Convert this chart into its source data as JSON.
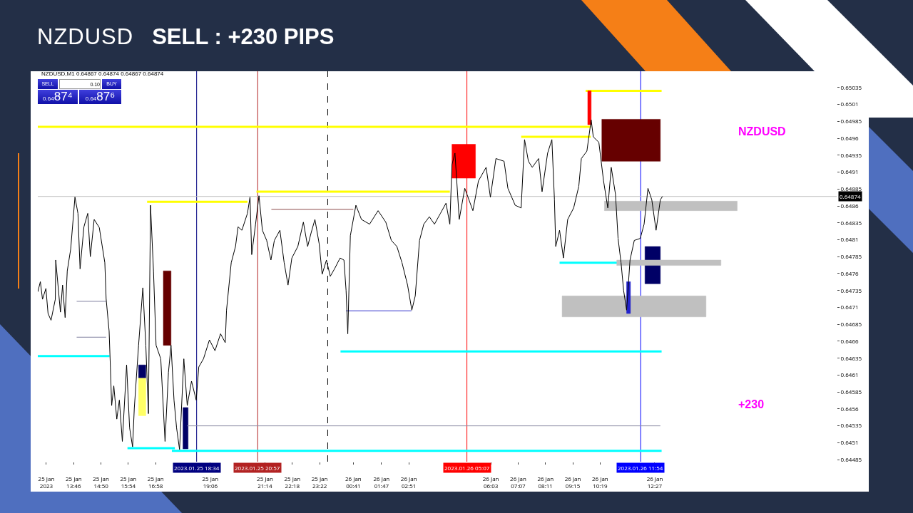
{
  "chart_data": {
    "type": "line",
    "title": "NZDUSD",
    "subtitle": "SELL : +230 PIPS",
    "annotations": [
      "NZDUSD,M1  0.64867 0.64874 0.64867 0.64874",
      "NZDUSD",
      "+230",
      "SELL",
      "0.10",
      "BUY",
      "0.6487⁴",
      "0.6487⁶"
    ],
    "xlim": [
      "2023-01-25T12:22",
      "2023-01-26T19:33"
    ],
    "ylim": [
      0.64482,
      0.65059
    ],
    "xticks": [
      {
        "value": "2023-01-25T12:42",
        "label": "25 Jan 2023"
      },
      {
        "value": "2023-01-25T13:46",
        "label": "25 Jan 13:46"
      },
      {
        "value": "2023-01-25T14:50",
        "label": "25 Jan 14:50"
      },
      {
        "value": "2023-01-25T15:54",
        "label": "25 Jan 15:54"
      },
      {
        "value": "2023-01-25T16:58",
        "label": "25 Jan 16:58"
      },
      {
        "value": "2023-01-25T19:06",
        "label": "25 Jan 19:06"
      },
      {
        "value": "2023-01-25T21:14",
        "label": "25 Jan 21:14"
      },
      {
        "value": "2023-01-25T22:18",
        "label": "25 Jan 22:18"
      },
      {
        "value": "2023-01-25T23:22",
        "label": "25 Jan 23:22"
      },
      {
        "value": "2023-01-26T00:41",
        "label": "26 Jan 00:41"
      },
      {
        "value": "2023-01-26T01:47",
        "label": "26 Jan 01:47"
      },
      {
        "value": "2023-01-26T02:51",
        "label": "26 Jan 02:51"
      },
      {
        "value": "2023-01-26T06:03",
        "label": "26 Jan 06:03"
      },
      {
        "value": "2023-01-26T07:07",
        "label": "26 Jan 07:07"
      },
      {
        "value": "2023-01-26T08:11",
        "label": "26 Jan 08:11"
      },
      {
        "value": "2023-01-26T09:15",
        "label": "26 Jan 09:15"
      },
      {
        "value": "2023-01-26T10:19",
        "label": "26 Jan 10:19"
      },
      {
        "value": "2023-01-26T12:27",
        "label": "26 Jan 12:27"
      }
    ],
    "yticks": [
      0.64485,
      0.6451,
      0.64535,
      0.6456,
      0.64585,
      0.6461,
      0.64635,
      0.6466,
      0.64685,
      0.6471,
      0.64735,
      0.6476,
      0.64785,
      0.6481,
      0.64835,
      0.6486,
      0.64885,
      0.6491,
      0.64935,
      0.6496,
      0.64985,
      0.6501,
      0.65035
    ],
    "series": [
      {
        "color": "#000000",
        "x": [
          "2023-01-25T12:22",
          "2023-01-25T12:28",
          "2023-01-25T12:33",
          "2023-01-25T12:41",
          "2023-01-25T12:46",
          "2023-01-25T12:53",
          "2023-01-25T13:03",
          "2023-01-25T13:04",
          "2023-01-25T13:15",
          "2023-01-25T13:20",
          "2023-01-25T13:26",
          "2023-01-25T13:31",
          "2023-01-25T13:39",
          "2023-01-25T13:49",
          "2023-01-25T13:56",
          "2023-01-25T14:01",
          "2023-01-25T14:10",
          "2023-01-25T14:19",
          "2023-01-25T14:25",
          "2023-01-25T14:34",
          "2023-01-25T14:46",
          "2023-01-25T14:59",
          "2023-01-25T15:02",
          "2023-01-25T15:09",
          "2023-01-25T15:12",
          "2023-01-25T15:15",
          "2023-01-25T15:20",
          "2023-01-25T15:27",
          "2023-01-25T15:33",
          "2023-01-25T15:40",
          "2023-01-25T15:50",
          "2023-01-25T15:57",
          "2023-01-25T16:04",
          "2023-01-25T16:08",
          "2023-01-25T16:18",
          "2023-01-25T16:28",
          "2023-01-25T16:35",
          "2023-01-25T16:41",
          "2023-01-25T16:46",
          "2023-01-25T16:53",
          "2023-01-25T16:59",
          "2023-01-25T17:10",
          "2023-01-25T17:20",
          "2023-01-25T17:28",
          "2023-01-25T17:34",
          "2023-01-25T17:41",
          "2023-01-25T17:47",
          "2023-01-25T17:54",
          "2023-01-25T18:04",
          "2023-01-25T18:12",
          "2023-01-25T18:22",
          "2023-01-25T18:33",
          "2023-01-25T18:39",
          "2023-01-25T18:50",
          "2023-01-25T19:04",
          "2023-01-25T19:17",
          "2023-01-25T19:30",
          "2023-01-25T19:41",
          "2023-01-25T19:44",
          "2023-01-25T19:55",
          "2023-01-25T20:05",
          "2023-01-25T20:11",
          "2023-01-25T20:20",
          "2023-01-25T20:33",
          "2023-01-25T20:39",
          "2023-01-25T20:43",
          "2023-01-25T20:52",
          "2023-01-25T21:00",
          "2023-01-25T21:08",
          "2023-01-25T21:18",
          "2023-01-25T21:28",
          "2023-01-25T21:36",
          "2023-01-25T21:49",
          "2023-01-25T21:59",
          "2023-01-25T22:08",
          "2023-01-25T22:17",
          "2023-01-25T22:31",
          "2023-01-25T22:44",
          "2023-01-25T22:54",
          "2023-01-25T23:02",
          "2023-01-25T23:11",
          "2023-01-25T23:21",
          "2023-01-25T23:28",
          "2023-01-25T23:38",
          "2023-01-25T23:47",
          "2023-01-25T23:57",
          "2023-01-26T00:10",
          "2023-01-26T00:19",
          "2023-01-26T00:24",
          "2023-01-26T00:28",
          "2023-01-26T00:34",
          "2023-01-26T00:47",
          "2023-01-26T01:00",
          "2023-01-26T01:19",
          "2023-01-26T01:39",
          "2023-01-26T01:57",
          "2023-01-26T02:10",
          "2023-01-26T02:23",
          "2023-01-26T02:35",
          "2023-01-26T02:48",
          "2023-01-26T02:58",
          "2023-01-26T03:06",
          "2023-01-26T03:16",
          "2023-01-26T03:26",
          "2023-01-26T03:39",
          "2023-01-26T03:51",
          "2023-01-26T04:05",
          "2023-01-26T04:18",
          "2023-01-26T04:27",
          "2023-01-26T04:32",
          "2023-01-26T04:39",
          "2023-01-26T04:49",
          "2023-01-26T05:02",
          "2023-01-26T05:21",
          "2023-01-26T05:34",
          "2023-01-26T05:52",
          "2023-01-26T06:02",
          "2023-01-26T06:15",
          "2023-01-26T06:34",
          "2023-01-26T06:43",
          "2023-01-26T07:00",
          "2023-01-26T07:14",
          "2023-01-26T07:22",
          "2023-01-26T07:31",
          "2023-01-26T07:40",
          "2023-01-26T07:55",
          "2023-01-26T08:03",
          "2023-01-26T08:16",
          "2023-01-26T08:26",
          "2023-01-26T08:32",
          "2023-01-26T08:35",
          "2023-01-26T08:44",
          "2023-01-26T08:53",
          "2023-01-26T09:03",
          "2023-01-26T09:17",
          "2023-01-26T09:29",
          "2023-01-26T09:35",
          "2023-01-26T09:48",
          "2023-01-26T09:58",
          "2023-01-26T10:03",
          "2023-01-26T10:16",
          "2023-01-26T10:27",
          "2023-01-26T10:37",
          "2023-01-26T10:45",
          "2023-01-26T10:55",
          "2023-01-26T11:01",
          "2023-01-26T11:08",
          "2023-01-26T11:14",
          "2023-01-26T11:21",
          "2023-01-26T11:29",
          "2023-01-26T11:39",
          "2023-01-26T11:53",
          "2023-01-26T12:02",
          "2023-01-26T12:11",
          "2023-01-26T12:20",
          "2023-01-26T12:30",
          "2023-01-26T12:40",
          "2023-01-26T12:45"
        ],
        "values": [
          0.64733,
          0.64748,
          0.64722,
          0.64738,
          0.64701,
          0.64691,
          0.64722,
          0.6478,
          0.64703,
          0.64743,
          0.64695,
          0.64764,
          0.64796,
          0.64873,
          0.64849,
          0.64767,
          0.64829,
          0.64849,
          0.64785,
          0.6484,
          0.64828,
          0.64776,
          0.64723,
          0.64675,
          0.64622,
          0.64565,
          0.64594,
          0.64545,
          0.64573,
          0.64512,
          0.64625,
          0.64532,
          0.64504,
          0.64561,
          0.64654,
          0.64739,
          0.64654,
          0.64553,
          0.64861,
          0.64763,
          0.64654,
          0.64634,
          0.64512,
          0.64614,
          0.64654,
          0.64573,
          0.64532,
          0.645,
          0.64634,
          0.64565,
          0.64601,
          0.64573,
          0.64622,
          0.64634,
          0.64662,
          0.64646,
          0.64671,
          0.64658,
          0.64706,
          0.64776,
          0.648,
          0.64829,
          0.64824,
          0.64849,
          0.64873,
          0.64788,
          0.64833,
          0.64875,
          0.64824,
          0.64809,
          0.6478,
          0.64809,
          0.64824,
          0.64776,
          0.64743,
          0.64783,
          0.648,
          0.64836,
          0.648,
          0.6482,
          0.6484,
          0.64804,
          0.64759,
          0.6478,
          0.64756,
          0.64767,
          0.64783,
          0.6478,
          0.64735,
          0.64671,
          0.64816,
          0.64861,
          0.6484,
          0.64833,
          0.64853,
          0.64836,
          0.64809,
          0.648,
          0.64776,
          0.64743,
          0.64706,
          0.64727,
          0.64809,
          0.64833,
          0.64844,
          0.64833,
          0.64849,
          0.64864,
          0.64833,
          0.64921,
          0.64938,
          0.6484,
          0.64886,
          0.64853,
          0.64897,
          0.64917,
          0.64873,
          0.6493,
          0.64926,
          0.64886,
          0.64861,
          0.64857,
          0.64958,
          0.64926,
          0.64917,
          0.6493,
          0.64881,
          0.64938,
          0.64958,
          0.64869,
          0.648,
          0.64824,
          0.64783,
          0.6484,
          0.64857,
          0.64889,
          0.6493,
          0.64941,
          0.64987,
          0.64962,
          0.64954,
          0.64897,
          0.64857,
          0.64917,
          0.64877,
          0.64812,
          0.64776,
          0.64735,
          0.64706,
          0.6478,
          0.64809,
          0.64812,
          0.64833,
          0.64886,
          0.64869,
          0.64824,
          0.64869,
          0.64874
        ]
      },
      {
        "color": "#ffff00",
        "x": [
          "2023-01-25T12:22",
          "2023-01-26T09:57"
        ],
        "values": [
          0.64977,
          0.64977
        ]
      },
      {
        "color": "#ffff00",
        "x": [
          "2023-01-26T07:14",
          "2023-01-26T09:57"
        ],
        "values": [
          0.64962,
          0.64962
        ]
      },
      {
        "color": "#ffff00",
        "x": [
          "2023-01-26T09:45",
          "2023-01-26T12:43"
        ],
        "values": [
          0.6503,
          0.6503
        ]
      },
      {
        "color": "#ffff00",
        "x": [
          "2023-01-25T16:38",
          "2023-01-25T20:33"
        ],
        "values": [
          0.64866,
          0.64866
        ]
      },
      {
        "color": "#ffff00",
        "x": [
          "2023-01-25T20:54",
          "2023-01-26T04:27"
        ],
        "values": [
          0.64881,
          0.64881
        ]
      },
      {
        "color": "#00ffff",
        "x": [
          "2023-01-25T12:22",
          "2023-01-25T15:10"
        ],
        "values": [
          0.64638,
          0.64638
        ]
      },
      {
        "color": "#00ffff",
        "x": [
          "2023-01-25T15:52",
          "2023-01-25T17:43"
        ],
        "values": [
          0.64502,
          0.64502
        ]
      },
      {
        "color": "#00ffff",
        "x": [
          "2023-01-25T17:36",
          "2023-01-26T12:43"
        ],
        "values": [
          0.64498,
          0.64498
        ]
      },
      {
        "color": "#00ffff",
        "x": [
          "2023-01-26T00:11",
          "2023-01-26T12:43"
        ],
        "values": [
          0.64645,
          0.64645
        ]
      },
      {
        "color": "#00ffff",
        "x": [
          "2023-01-26T08:44",
          "2023-01-26T10:59"
        ],
        "values": [
          0.64776,
          0.64776
        ]
      },
      {
        "type": "area",
        "color": "#ff0000",
        "x": [
          "2023-01-26T04:32",
          "2023-01-26T05:27",
          "2023-01-26T05:27",
          "2023-01-26T04:32",
          "2023-01-26T04:32"
        ],
        "values": [
          0.64951,
          0.64951,
          0.64901,
          0.64901,
          0.64951
        ]
      },
      {
        "type": "area",
        "color": "#660000",
        "x": [
          "2023-01-26T10:23",
          "2023-01-26T12:40",
          "2023-01-26T12:40",
          "2023-01-26T10:23",
          "2023-01-26T10:23"
        ],
        "values": [
          0.64988,
          0.64988,
          0.64926,
          0.64926,
          0.64988
        ]
      },
      {
        "type": "area",
        "color": "#660000",
        "x": [
          "2023-01-25T17:16",
          "2023-01-25T17:34",
          "2023-01-25T17:34",
          "2023-01-25T17:16",
          "2023-01-25T17:16"
        ],
        "values": [
          0.64764,
          0.64764,
          0.64654,
          0.64654,
          0.64764
        ]
      },
      {
        "type": "area",
        "color": "#000066",
        "x": [
          "2023-01-26T12:04",
          "2023-01-26T12:40",
          "2023-01-26T12:40",
          "2023-01-26T12:04",
          "2023-01-26T12:04"
        ],
        "values": [
          0.648,
          0.648,
          0.64745,
          0.64745,
          0.648
        ]
      },
      {
        "type": "area",
        "color": "#c0c0c0",
        "x": [
          "2023-01-26T10:29",
          "2023-01-26T15:40",
          "2023-01-26T15:40",
          "2023-01-26T10:29",
          "2023-01-26T10:29"
        ],
        "values": [
          0.64867,
          0.64867,
          0.64853,
          0.64853,
          0.64867
        ]
      },
      {
        "type": "area",
        "color": "#c0c0c0",
        "x": [
          "2023-01-26T10:58",
          "2023-01-26T15:02",
          "2023-01-26T15:02",
          "2023-01-26T10:58",
          "2023-01-26T10:58"
        ],
        "values": [
          0.6478,
          0.6478,
          0.64772,
          0.64772,
          0.6478
        ]
      },
      {
        "type": "area",
        "color": "#c0c0c0",
        "x": [
          "2023-01-26T08:50",
          "2023-01-26T14:27",
          "2023-01-26T14:27",
          "2023-01-26T08:50",
          "2023-01-26T08:50"
        ],
        "values": [
          0.64727,
          0.64727,
          0.64696,
          0.64696,
          0.64727
        ]
      },
      {
        "type": "area",
        "color": "#ffff66",
        "x": [
          "2023-01-25T16:18",
          "2023-01-25T16:35",
          "2023-01-25T16:35",
          "2023-01-25T16:18",
          "2023-01-25T16:18"
        ],
        "values": [
          0.64606,
          0.64606,
          0.6455,
          0.6455,
          0.64606
        ]
      },
      {
        "type": "area",
        "color": "#000066",
        "x": [
          "2023-01-25T16:18",
          "2023-01-25T16:35",
          "2023-01-25T16:35",
          "2023-01-25T16:18",
          "2023-01-25T16:18"
        ],
        "values": [
          0.64625,
          0.64625,
          0.64606,
          0.64606,
          0.64625
        ]
      },
      {
        "type": "area",
        "color": "#000066",
        "x": [
          "2023-01-25T18:02",
          "2023-01-25T18:14",
          "2023-01-25T18:14",
          "2023-01-25T18:02",
          "2023-01-25T18:02"
        ],
        "values": [
          0.64562,
          0.64562,
          0.64501,
          0.64501,
          0.64562
        ]
      },
      {
        "type": "area",
        "color": "#2222cc",
        "x": [
          "2023-01-26T11:21",
          "2023-01-26T11:30",
          "2023-01-26T11:30",
          "2023-01-26T11:21",
          "2023-01-26T11:21"
        ],
        "values": [
          0.64748,
          0.64748,
          0.64701,
          0.64701,
          0.64748
        ]
      },
      {
        "type": "area",
        "color": "#ff0000",
        "x": [
          "2023-01-26T09:50",
          "2023-01-26T09:58",
          "2023-01-26T09:58",
          "2023-01-26T09:50",
          "2023-01-26T09:50"
        ],
        "values": [
          0.6503,
          0.6503,
          0.6498,
          0.6498,
          0.6503
        ]
      },
      {
        "color": "#8080a0",
        "x": [
          "2023-01-25T13:53",
          "2023-01-25T15:02"
        ],
        "values": [
          0.64719,
          0.64719
        ]
      },
      {
        "color": "#8080a0",
        "x": [
          "2023-01-25T13:53",
          "2023-01-25T15:02"
        ],
        "values": [
          0.64666,
          0.64666
        ]
      },
      {
        "color": "#8b4a4a",
        "x": [
          "2023-01-25T21:29",
          "2023-01-26T00:41"
        ],
        "values": [
          0.64855,
          0.64855
        ]
      },
      {
        "color": "#3333cc",
        "x": [
          "2023-01-26T00:24",
          "2023-01-26T02:57"
        ],
        "values": [
          0.64705,
          0.64705
        ]
      },
      {
        "color": "#9090a8",
        "x": [
          "2023-01-25T18:12",
          "2023-01-26T12:40"
        ],
        "values": [
          0.64535,
          0.64535
        ]
      }
    ],
    "ref_lines": [
      {
        "axis": "x",
        "value": "2023-01-25T18:34",
        "label": "2023.01.25 18:34",
        "color": "#000080"
      },
      {
        "axis": "x",
        "value": "2023-01-25T20:57",
        "label": "2023.01.25 20:57",
        "color": "#b22222"
      },
      {
        "axis": "x",
        "value": "2023-01-25T23:41",
        "label": null,
        "color": "#000000",
        "line_style": "dashed"
      },
      {
        "axis": "x",
        "value": "2023-01-26T05:07",
        "label": "2023.01.26 05:07",
        "color": "#ff0000"
      },
      {
        "axis": "x",
        "value": "2023-01-26T11:54",
        "label": "2023.01.26 11:54",
        "color": "#0000ff"
      },
      {
        "axis": "y",
        "value": 0.64874,
        "label": "0.64874",
        "color": "#c0c0c0"
      }
    ]
  }
}
